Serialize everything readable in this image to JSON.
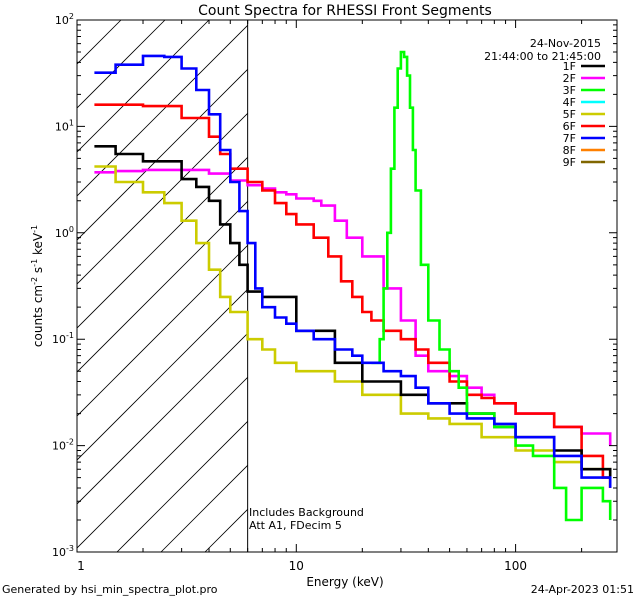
{
  "chart_data": {
    "type": "line",
    "title": "Count Spectra for RHESSI Front Segments",
    "xlabel": "Energy (keV)",
    "ylabel": "counts cm-2 s-1 keV-1",
    "xscale": "log",
    "yscale": "log",
    "xlim": [
      1,
      290
    ],
    "ylim": [
      0.001,
      100
    ],
    "x_ticks": [
      {
        "value": 10,
        "label": "10"
      },
      {
        "value": 100,
        "label": "100"
      }
    ],
    "y_ticks": [
      {
        "value": 100,
        "base": "10",
        "exp": "2"
      },
      {
        "value": 10,
        "base": "10",
        "exp": "1"
      },
      {
        "value": 1,
        "base": "10",
        "exp": "0"
      },
      {
        "value": 0.1,
        "base": "10",
        "exp": "-1"
      },
      {
        "value": 0.01,
        "base": "10",
        "exp": "-2"
      },
      {
        "value": 0.001,
        "base": "10",
        "exp": "-3"
      }
    ],
    "date": "24-Nov-2015",
    "time_range": "21:44:00 to 21:45:00",
    "annotations": [
      "Includes Background",
      "Att A1, FDecim  5"
    ],
    "hatched_region": [
      1,
      6
    ],
    "series": [
      {
        "name": "1F",
        "color": "#000000",
        "points": [
          [
            1.2,
            6.5
          ],
          [
            1.5,
            5.5
          ],
          [
            2,
            4.7
          ],
          [
            3,
            3.2
          ],
          [
            3.5,
            2.7
          ],
          [
            4,
            2.0
          ],
          [
            4.5,
            1.2
          ],
          [
            5,
            0.8
          ],
          [
            5.5,
            0.5
          ],
          [
            6,
            0.28
          ],
          [
            7,
            0.25
          ],
          [
            8,
            0.25
          ],
          [
            10,
            0.12
          ],
          [
            15,
            0.06
          ],
          [
            20,
            0.04
          ],
          [
            30,
            0.03
          ],
          [
            40,
            0.025
          ],
          [
            60,
            0.02
          ],
          [
            80,
            0.015
          ],
          [
            100,
            0.012
          ],
          [
            150,
            0.009
          ],
          [
            200,
            0.006
          ],
          [
            270,
            0.005
          ]
        ]
      },
      {
        "name": "2F",
        "color": "#ff00ff",
        "points": [
          [
            1.2,
            3.7
          ],
          [
            1.5,
            3.8
          ],
          [
            2,
            3.9
          ],
          [
            3,
            3.9
          ],
          [
            4,
            3.6
          ],
          [
            5,
            3.1
          ],
          [
            6,
            2.8
          ],
          [
            7,
            2.6
          ],
          [
            8,
            2.4
          ],
          [
            9,
            2.3
          ],
          [
            10,
            2.1
          ],
          [
            12,
            2.0
          ],
          [
            13,
            1.8
          ],
          [
            15,
            1.3
          ],
          [
            17,
            0.9
          ],
          [
            20,
            0.6
          ],
          [
            25,
            0.3
          ],
          [
            30,
            0.15
          ],
          [
            35,
            0.07
          ],
          [
            40,
            0.05
          ],
          [
            50,
            0.045
          ],
          [
            60,
            0.035
          ],
          [
            70,
            0.03
          ],
          [
            80,
            0.025
          ],
          [
            100,
            0.02
          ],
          [
            150,
            0.015
          ],
          [
            200,
            0.013
          ],
          [
            270,
            0.01
          ]
        ]
      },
      {
        "name": "3F",
        "color": "#00ff00",
        "points": [
          [
            22,
            0.06
          ],
          [
            24,
            0.1
          ],
          [
            25,
            0.3
          ],
          [
            26,
            1.0
          ],
          [
            27,
            4
          ],
          [
            28,
            15
          ],
          [
            29,
            35
          ],
          [
            30,
            50
          ],
          [
            31,
            45
          ],
          [
            32,
            30
          ],
          [
            33,
            15
          ],
          [
            34,
            6
          ],
          [
            35,
            2.5
          ],
          [
            37,
            0.5
          ],
          [
            40,
            0.15
          ],
          [
            45,
            0.08
          ],
          [
            50,
            0.05
          ],
          [
            55,
            0.035
          ],
          [
            60,
            0.02
          ],
          [
            70,
            0.02
          ],
          [
            80,
            0.015
          ],
          [
            100,
            0.01
          ],
          [
            120,
            0.008
          ],
          [
            150,
            0.004
          ],
          [
            170,
            0.002
          ],
          [
            200,
            0.004
          ],
          [
            250,
            0.003
          ],
          [
            270,
            0.002
          ]
        ]
      },
      {
        "name": "4F",
        "color": "#00ffff",
        "points": []
      },
      {
        "name": "5F",
        "color": "#cccc00",
        "points": [
          [
            1.2,
            4.2
          ],
          [
            1.5,
            3.0
          ],
          [
            2,
            2.4
          ],
          [
            2.5,
            1.9
          ],
          [
            3,
            1.3
          ],
          [
            3.5,
            0.8
          ],
          [
            4,
            0.45
          ],
          [
            4.5,
            0.25
          ],
          [
            5,
            0.18
          ],
          [
            6,
            0.1
          ],
          [
            7,
            0.08
          ],
          [
            8,
            0.06
          ],
          [
            10,
            0.05
          ],
          [
            15,
            0.04
          ],
          [
            20,
            0.03
          ],
          [
            30,
            0.02
          ],
          [
            40,
            0.018
          ],
          [
            50,
            0.016
          ],
          [
            70,
            0.012
          ],
          [
            100,
            0.009
          ],
          [
            150,
            0.007
          ],
          [
            200,
            0.006
          ],
          [
            270,
            0.004
          ]
        ]
      },
      {
        "name": "6F",
        "color": "#ff0000",
        "points": [
          [
            1.2,
            16
          ],
          [
            1.5,
            16
          ],
          [
            2,
            15.5
          ],
          [
            3,
            12
          ],
          [
            4,
            8
          ],
          [
            4.5,
            5.5
          ],
          [
            5,
            4.0
          ],
          [
            6,
            3.0
          ],
          [
            7,
            2.5
          ],
          [
            8,
            1.9
          ],
          [
            9,
            1.5
          ],
          [
            10,
            1.2
          ],
          [
            12,
            0.9
          ],
          [
            14,
            0.6
          ],
          [
            16,
            0.35
          ],
          [
            18,
            0.25
          ],
          [
            20,
            0.18
          ],
          [
            22,
            0.15
          ],
          [
            25,
            0.12
          ],
          [
            30,
            0.1
          ],
          [
            35,
            0.08
          ],
          [
            40,
            0.06
          ],
          [
            50,
            0.04
          ],
          [
            60,
            0.03
          ],
          [
            70,
            0.028
          ],
          [
            80,
            0.025
          ],
          [
            100,
            0.02
          ],
          [
            150,
            0.015
          ],
          [
            200,
            0.008
          ],
          [
            250,
            0.005
          ],
          [
            270,
            0.004
          ]
        ]
      },
      {
        "name": "7F",
        "color": "#0000ff",
        "points": [
          [
            1.2,
            32
          ],
          [
            1.5,
            38
          ],
          [
            2,
            46
          ],
          [
            2.5,
            45
          ],
          [
            3,
            35
          ],
          [
            3.5,
            22
          ],
          [
            4,
            13
          ],
          [
            4.5,
            6
          ],
          [
            5,
            3
          ],
          [
            5.5,
            1.6
          ],
          [
            6,
            0.8
          ],
          [
            6.5,
            0.3
          ],
          [
            7,
            0.2
          ],
          [
            8,
            0.16
          ],
          [
            9,
            0.14
          ],
          [
            10,
            0.12
          ],
          [
            12,
            0.1
          ],
          [
            15,
            0.08
          ],
          [
            18,
            0.07
          ],
          [
            20,
            0.06
          ],
          [
            25,
            0.05
          ],
          [
            30,
            0.045
          ],
          [
            35,
            0.035
          ],
          [
            40,
            0.025
          ],
          [
            50,
            0.02
          ],
          [
            60,
            0.018
          ],
          [
            80,
            0.016
          ],
          [
            100,
            0.012
          ],
          [
            150,
            0.008
          ],
          [
            200,
            0.005
          ],
          [
            270,
            0.004
          ]
        ]
      },
      {
        "name": "8F",
        "color": "#ff8000",
        "points": []
      },
      {
        "name": "9F",
        "color": "#806600",
        "points": []
      }
    ]
  },
  "footer": {
    "left": "Generated by hsi_min_spectra_plot.pro",
    "right": "24-Apr-2023 01:51"
  }
}
